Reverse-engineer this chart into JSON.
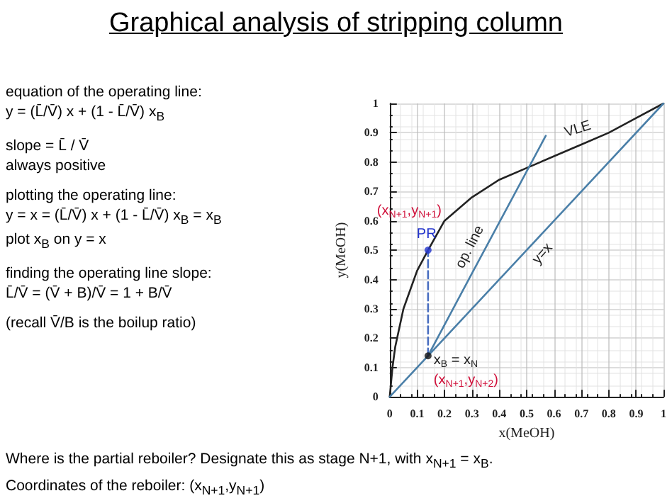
{
  "chart_data": {
    "type": "line",
    "title": "Graphical analysis of stripping column",
    "xlabel": "x(MeOH)",
    "ylabel": "y(MeOH)",
    "xlim": [
      0,
      1
    ],
    "ylim": [
      0,
      1
    ],
    "xticks": [
      0,
      0.1,
      0.2,
      0.3,
      0.4,
      0.5,
      0.6,
      0.7,
      0.8,
      0.9,
      1
    ],
    "yticks": [
      0,
      0.1,
      0.2,
      0.3,
      0.4,
      0.5,
      0.6,
      0.7,
      0.8,
      0.9,
      1
    ],
    "grid": true,
    "series": [
      {
        "color": "#222222",
        "x": [
          0,
          0.01,
          0.02,
          0.05,
          0.1,
          0.14,
          0.2,
          0.3,
          0.4,
          0.5,
          0.6,
          0.7,
          0.8,
          0.9,
          1
        ],
        "values": [
          0,
          0.1,
          0.17,
          0.3,
          0.43,
          0.5,
          0.6,
          0.68,
          0.74,
          0.78,
          0.82,
          0.86,
          0.9,
          0.95,
          1
        ],
        "marker": "none"
      },
      {
        "color": "#4a7fa8",
        "x": [
          0,
          0.5,
          1
        ],
        "values": [
          0,
          0.5,
          1
        ],
        "marker": "none"
      },
      {
        "color": "#4a7fa8",
        "x": [
          0.14,
          0.3,
          0.57
        ],
        "values": [
          0.14,
          0.42,
          0.89
        ],
        "marker": "none"
      },
      {
        "color": "#4a6fc0",
        "x": [
          0.14,
          0.14
        ],
        "values": [
          0.14,
          0.5
        ],
        "marker": "none",
        "line_style": "dashed"
      },
      {
        "type": "scatter",
        "color": "#2233cc",
        "x": [
          0.14
        ],
        "values": [
          0.5
        ],
        "marker": "circle"
      },
      {
        "type": "scatter",
        "color": "#111111",
        "x": [
          0.14
        ],
        "values": [
          0.14
        ],
        "marker": "circle"
      }
    ],
    "annotations": [
      "equation of the operating line:",
      "y = (L̄/V̄) x + (1 - L̄/V̄) x$_{B}$",
      "slope =  L̄ / V̄",
      "always positive",
      "plotting the operating line:",
      "y = x = (L̄/V̄) x + (1 - L̄/V̄) x$_{B}$ = x$_{B}$",
      "plot x$_{B}$ on y = x",
      "finding the operating line slope:",
      "L̄/V̄ = (V̄ + B)/V̄ = 1 + B/V̄",
      "(recall V̄/B is the boilup ratio)",
      {
        "text": "VLE",
        "x": 0.7,
        "y": 0.86
      },
      {
        "text": "op. line",
        "x": 0.3,
        "y": 0.42
      },
      {
        "text": "y=x",
        "x": 0.5,
        "y": 0.5
      },
      {
        "text": "(x$_{N+1}$,y$_{N+1}$)",
        "x": 0.14,
        "y": 0.5
      },
      {
        "text": "PR",
        "x": 0.14,
        "y": 0.5
      },
      {
        "text": "x$_{B}$ = x$_{N}$",
        "x": 0.14,
        "y": 0.14
      },
      {
        "text": "(x$_{N+1}$,y$_{N+2}$)",
        "x": 0.14,
        "y": 0.14
      },
      "Where is the partial reboiler? Designate this as stage N+1, with x$_{N+1}$ = x$_{B}$.",
      "Coordinates of the reboiler: (x$_{N+1}$,y$_{N+1}$)"
    ]
  }
}
